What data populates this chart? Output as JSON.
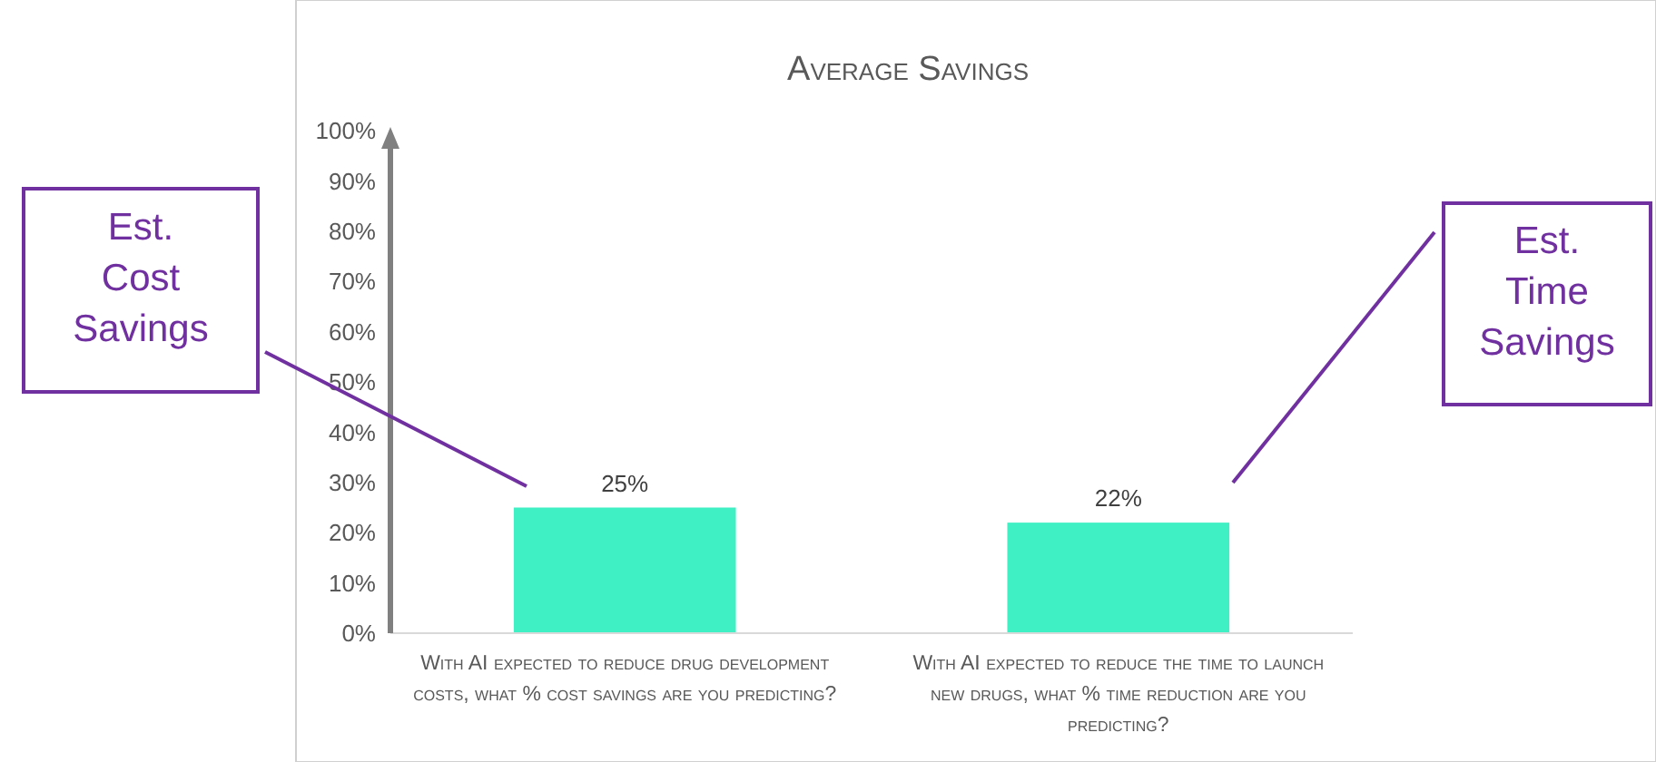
{
  "chart_data": {
    "type": "bar",
    "title": "Average Savings",
    "categories": [
      "With AI expected to reduce drug development costs, what % cost savings are you predicting?",
      "With AI expected to reduce the time to launch new drugs, what % time reduction are you predicting?"
    ],
    "values": [
      25,
      22
    ],
    "color": "#3ef0c3",
    "value_labels": [
      "25%",
      "22%"
    ],
    "ylim": [
      0,
      100
    ],
    "yticks": [
      {
        "value": 0,
        "label": "0%"
      },
      {
        "value": 10,
        "label": "10%"
      },
      {
        "value": 20,
        "label": "20%"
      },
      {
        "value": 30,
        "label": "30%"
      },
      {
        "value": 40,
        "label": "40%"
      },
      {
        "value": 50,
        "label": "50%"
      },
      {
        "value": 60,
        "label": "60%"
      },
      {
        "value": 70,
        "label": "70%"
      },
      {
        "value": 80,
        "label": "80%"
      },
      {
        "value": 90,
        "label": "90%"
      },
      {
        "value": 100,
        "label": "100%"
      }
    ],
    "grid": false,
    "annotations": [
      "Est. Cost Savings",
      "Est. Time Savings"
    ]
  }
}
